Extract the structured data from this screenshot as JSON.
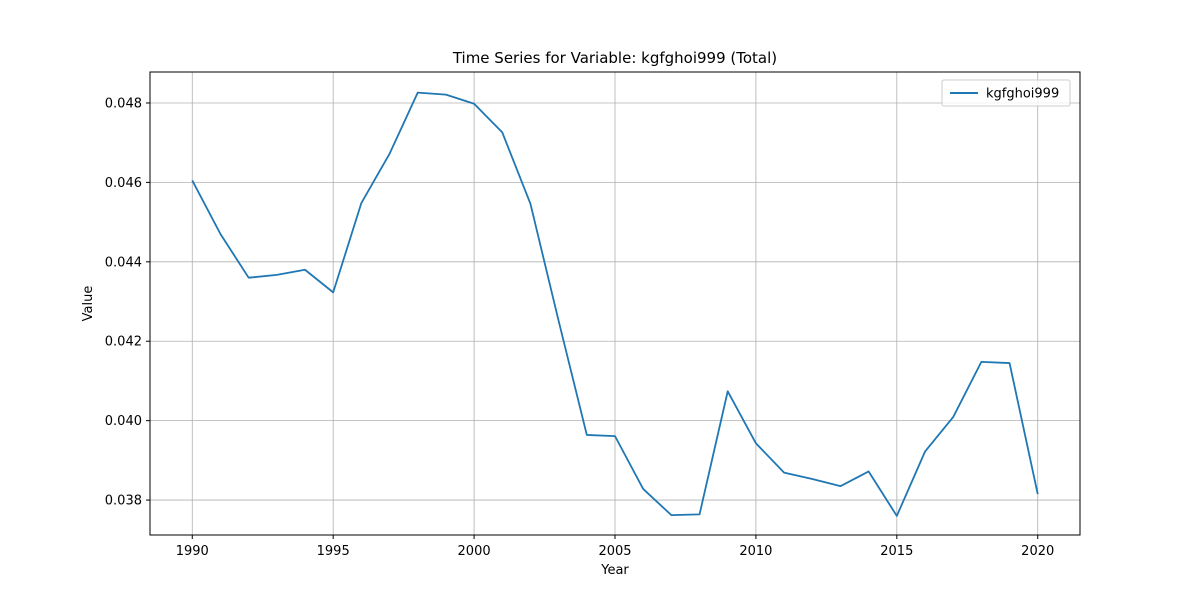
{
  "chart_data": {
    "type": "line",
    "title": "Time Series for Variable: kgfghoi999 (Total)",
    "xlabel": "Year",
    "ylabel": "Value",
    "xlim": [
      1988.5,
      2021.5
    ],
    "ylim": [
      0.03712,
      0.04878
    ],
    "xticks": [
      1990,
      1995,
      2000,
      2005,
      2010,
      2015,
      2020
    ],
    "yticks": [
      0.038,
      0.04,
      0.042,
      0.044,
      0.046,
      0.048
    ],
    "ytick_labels": [
      "0.038",
      "0.040",
      "0.042",
      "0.044",
      "0.046",
      "0.048"
    ],
    "grid": true,
    "legend_position": "top-right",
    "line_color": "#1f77b4",
    "series": [
      {
        "name": "kgfghoi999",
        "x": [
          1990,
          1991,
          1992,
          1993,
          1994,
          1995,
          1996,
          1997,
          1998,
          1999,
          2000,
          2001,
          2002,
          2003,
          2004,
          2005,
          2006,
          2007,
          2008,
          2009,
          2010,
          2011,
          2012,
          2013,
          2014,
          2015,
          2016,
          2017,
          2018,
          2019,
          2020
        ],
        "values": [
          0.04605,
          0.0447,
          0.0436,
          0.04367,
          0.0438,
          0.04323,
          0.04548,
          0.04672,
          0.04826,
          0.04821,
          0.04798,
          0.04726,
          0.04546,
          0.04251,
          0.03964,
          0.03961,
          0.03828,
          0.03762,
          0.03764,
          0.04074,
          0.03943,
          0.03869,
          0.03853,
          0.03835,
          0.03872,
          0.0376,
          0.03922,
          0.04009,
          0.04148,
          0.04145,
          0.03815
        ]
      }
    ]
  }
}
